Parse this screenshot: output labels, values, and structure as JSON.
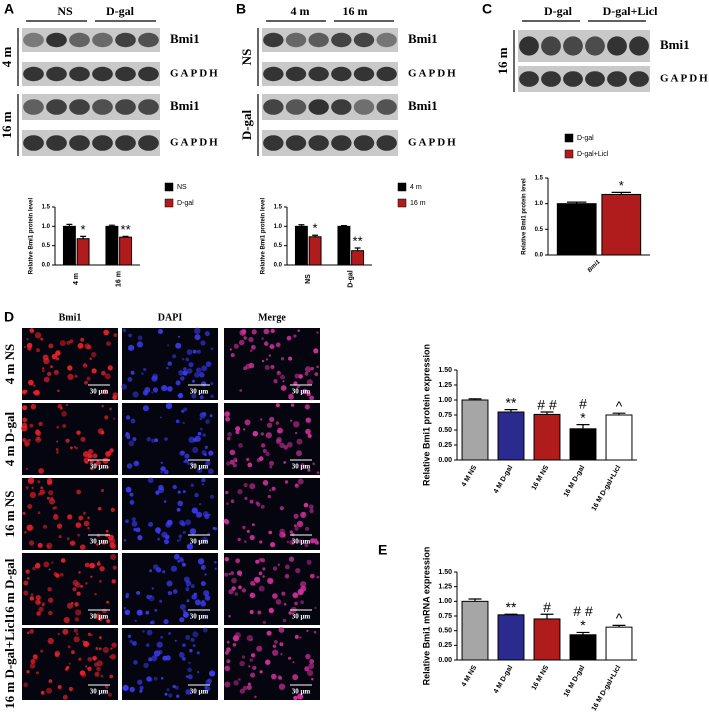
{
  "panel_labels": [
    "A",
    "B",
    "C",
    "D",
    "E"
  ],
  "blots": [
    {
      "columns": [
        "NS",
        "D-gal"
      ],
      "rows": [
        {
          "label": "4 m",
          "bands": [
            "Bmi1",
            "GAPDH"
          ]
        },
        {
          "label": "16 m",
          "bands": [
            "Bmi1",
            "GAPDH"
          ]
        }
      ]
    },
    {
      "columns": [
        "4 m",
        "16 m"
      ],
      "rows": [
        {
          "label": "NS",
          "bands": [
            "Bmi1",
            "GAPDH"
          ]
        },
        {
          "label": "D-gal",
          "bands": [
            "Bmi1",
            "GAPDH"
          ]
        }
      ]
    },
    {
      "columns": [
        "D-gal",
        "D-gal+Licl"
      ],
      "rows": [
        {
          "label": "16 m",
          "bands": [
            "Bmi1",
            "GAPDH"
          ]
        }
      ]
    }
  ],
  "microscopy": {
    "columns": [
      "Bmi1",
      "DAPI",
      "Merge"
    ],
    "rows": [
      "4 m NS",
      "4 m D-gal",
      "16 m NS",
      "16 m D-gal",
      "16 m D-gal+Licl"
    ],
    "scale_bar": "30 μm"
  },
  "chart_data": [
    {
      "type": "bar",
      "y_label": "Relative Bmi1 protein level",
      "categories": [
        "4 m",
        "16 m"
      ],
      "series": [
        {
          "name": "NS",
          "color": "#000000",
          "values": [
            1.0,
            1.0
          ],
          "errors": [
            0.05,
            0.03
          ],
          "labels": [
            null,
            null
          ]
        },
        {
          "name": "D-gal",
          "color": "#b01c1c",
          "values": [
            0.68,
            0.72
          ],
          "errors": [
            0.06,
            0.02
          ],
          "labels": [
            "*",
            "**"
          ]
        }
      ],
      "ylim": [
        0,
        1.5
      ],
      "yticks": [
        {
          "value": 0,
          "label": "0.0"
        },
        0.5,
        {
          "value": 1,
          "label": "1.0"
        },
        1.5
      ],
      "legend": "right"
    },
    {
      "type": "bar",
      "y_label": "Relative Bmi1 protein level",
      "categories": [
        "NS",
        "D-gal"
      ],
      "series": [
        {
          "name": "4 m",
          "color": "#000000",
          "values": [
            1.0,
            1.0
          ],
          "errors": [
            0.04,
            0.02
          ],
          "labels": [
            null,
            null
          ]
        },
        {
          "name": "16 m",
          "color": "#b01c1c",
          "values": [
            0.73,
            0.37
          ],
          "errors": [
            0.04,
            0.07
          ],
          "labels": [
            "*",
            "**"
          ]
        }
      ],
      "ylim": [
        0,
        1.5
      ],
      "yticks": [
        {
          "value": 0,
          "label": "0.0"
        },
        0.5,
        {
          "value": 1,
          "label": "1.0"
        },
        1.5
      ],
      "legend": "right"
    },
    {
      "type": "bar",
      "y_label": "Relative Bmi1 protein level",
      "categories": [
        "Bmi1"
      ],
      "series": [
        {
          "name": "D-gal",
          "color": "#000000",
          "values": [
            1.0
          ],
          "errors": [
            0.03
          ],
          "labels": [
            null
          ]
        },
        {
          "name": "D-gal+Licl",
          "color": "#b01c1c",
          "values": [
            1.18
          ],
          "errors": [
            0.04
          ],
          "labels": [
            "*"
          ]
        }
      ],
      "ylim": [
        0,
        1.5
      ],
      "yticks": [
        {
          "value": 0,
          "label": "0.0"
        },
        0.5,
        {
          "value": 1,
          "label": "1.0"
        },
        1.5
      ],
      "legend": "top"
    },
    {
      "type": "bar",
      "y_label": "Relative Bmi1 protein expression",
      "categories": [
        "4 M NS",
        "4 M D-gal",
        "16 M NS",
        "16 M D-gal",
        "16 M D-gal+Licl"
      ],
      "values": [
        1.0,
        0.8,
        0.76,
        0.52,
        0.75
      ],
      "errors": [
        0.02,
        0.04,
        0.04,
        0.07,
        0.03
      ],
      "colors": [
        "#a6a6a6",
        "#2b2b8f",
        "#b01c1c",
        "#000000",
        "#ffffff"
      ],
      "labels": [
        null,
        "**",
        "# #",
        [
          "#",
          "*"
        ],
        "^"
      ],
      "ylim": [
        0,
        1.5
      ],
      "yticks": [
        {
          "value": 0,
          "label": "0.00"
        },
        0.25,
        {
          "value": 0.5,
          "label": "0.50"
        },
        0.75,
        {
          "value": 1,
          "label": "1.00"
        },
        1.25,
        {
          "value": 1.5,
          "label": "1.50"
        }
      ]
    },
    {
      "type": "bar",
      "y_label": "Relative Bmi1 mRNA expression",
      "categories": [
        "4 M NS",
        "4 M D-gal",
        "16 M NS",
        "16 M D-gal",
        "16 M D-gal+Licl"
      ],
      "values": [
        1.0,
        0.77,
        0.7,
        0.43,
        0.56
      ],
      "errors": [
        0.04,
        0.01,
        0.08,
        0.04,
        0.03
      ],
      "colors": [
        "#a6a6a6",
        "#2b2b8f",
        "#b01c1c",
        "#000000",
        "#ffffff"
      ],
      "labels": [
        null,
        "**",
        "#",
        [
          "# #",
          "*"
        ],
        "^"
      ],
      "ylim": [
        0,
        1.5
      ],
      "yticks": [
        {
          "value": 0,
          "label": "0.00"
        },
        0.25,
        {
          "value": 0.5,
          "label": "0.50"
        },
        0.75,
        {
          "value": 1,
          "label": "1.00"
        },
        1.25,
        {
          "value": 1.5,
          "label": "1.50"
        }
      ]
    }
  ]
}
